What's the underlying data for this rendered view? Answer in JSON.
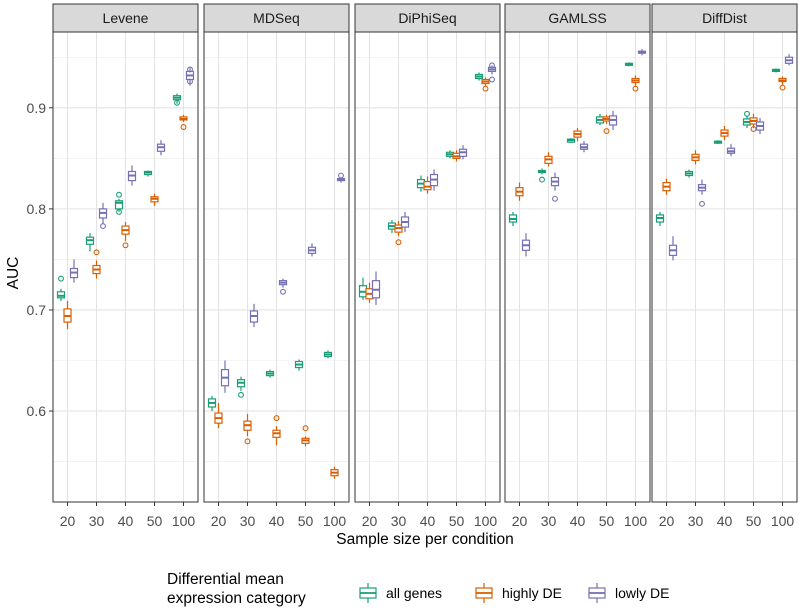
{
  "chart_data": {
    "type": "boxplot",
    "xlabel": "Sample size per condition",
    "ylabel": "AUC",
    "ylim": [
      0.51,
      0.975
    ],
    "yticks": [
      0.6,
      0.7,
      0.8,
      0.9
    ],
    "ytick_labels": [
      "0.6",
      "0.7",
      "0.8",
      "0.9"
    ],
    "categories": [
      "20",
      "30",
      "40",
      "50",
      "100"
    ],
    "legend": {
      "title_line1": "Differential mean",
      "title_line2": "expression category",
      "position": "bottom"
    },
    "series": [
      {
        "key": "all",
        "name": "all genes",
        "color": "#1b9e77"
      },
      {
        "key": "high",
        "name": "highly DE",
        "color": "#d95f02"
      },
      {
        "key": "low",
        "name": "lowly DE",
        "color": "#7570b3"
      }
    ],
    "panels": [
      {
        "name": "Levene",
        "boxes": {
          "all": [
            [
              0.709,
              0.712,
              0.714,
              0.718,
              0.721,
              [
                0.731
              ]
            ],
            [
              0.758,
              0.765,
              0.769,
              0.772,
              0.776,
              []
            ],
            [
              0.797,
              0.8,
              0.806,
              0.808,
              0.81,
              [
                0.814,
                0.797
              ]
            ],
            [
              0.832,
              0.834,
              0.836,
              0.837,
              0.838,
              []
            ],
            [
              0.904,
              0.908,
              0.91,
              0.912,
              0.914,
              [
                0.905
              ]
            ]
          ],
          "high": [
            [
              0.681,
              0.688,
              0.694,
              0.701,
              0.709,
              []
            ],
            [
              0.731,
              0.736,
              0.74,
              0.744,
              0.749,
              [
                0.757
              ]
            ],
            [
              0.768,
              0.775,
              0.779,
              0.783,
              0.787,
              [
                0.764
              ]
            ],
            [
              0.803,
              0.807,
              0.81,
              0.812,
              0.815,
              []
            ],
            [
              0.886,
              0.888,
              0.889,
              0.891,
              0.893,
              [
                0.881
              ]
            ]
          ],
          "low": [
            [
              0.727,
              0.732,
              0.737,
              0.741,
              0.75,
              []
            ],
            [
              0.785,
              0.791,
              0.796,
              0.8,
              0.806,
              [
                0.783
              ]
            ],
            [
              0.823,
              0.828,
              0.833,
              0.837,
              0.843,
              []
            ],
            [
              0.853,
              0.857,
              0.861,
              0.864,
              0.868,
              []
            ],
            [
              0.922,
              0.928,
              0.932,
              0.936,
              0.94,
              [
                0.938,
                0.926
              ]
            ]
          ]
        }
      },
      {
        "name": "MDSeq",
        "boxes": {
          "all": [
            [
              0.6,
              0.604,
              0.608,
              0.612,
              0.615,
              []
            ],
            [
              0.62,
              0.624,
              0.628,
              0.631,
              0.634,
              [
                0.616
              ]
            ],
            [
              0.633,
              0.635,
              0.637,
              0.639,
              0.641,
              []
            ],
            [
              0.64,
              0.643,
              0.646,
              0.649,
              0.651,
              []
            ],
            [
              0.652,
              0.654,
              0.656,
              0.658,
              0.66,
              []
            ]
          ],
          "high": [
            [
              0.583,
              0.588,
              0.593,
              0.598,
              0.608,
              []
            ],
            [
              0.575,
              0.581,
              0.586,
              0.59,
              0.597,
              [
                0.57
              ]
            ],
            [
              0.566,
              0.574,
              0.578,
              0.581,
              0.585,
              [
                0.593
              ]
            ],
            [
              0.565,
              0.568,
              0.571,
              0.573,
              0.575,
              [
                0.583
              ]
            ],
            [
              0.533,
              0.536,
              0.539,
              0.542,
              0.545,
              []
            ]
          ],
          "low": [
            [
              0.618,
              0.625,
              0.633,
              0.641,
              0.65,
              []
            ],
            [
              0.683,
              0.688,
              0.694,
              0.699,
              0.706,
              []
            ],
            [
              0.722,
              0.725,
              0.727,
              0.729,
              0.731,
              [
                0.718
              ]
            ],
            [
              0.753,
              0.756,
              0.759,
              0.762,
              0.766,
              []
            ],
            [
              0.826,
              0.828,
              0.829,
              0.83,
              0.831,
              [
                0.833
              ]
            ]
          ]
        }
      },
      {
        "name": "DiPhiSeq",
        "boxes": {
          "all": [
            [
              0.71,
              0.713,
              0.718,
              0.724,
              0.732,
              []
            ],
            [
              0.776,
              0.78,
              0.783,
              0.786,
              0.789,
              []
            ],
            [
              0.817,
              0.821,
              0.825,
              0.829,
              0.833,
              []
            ],
            [
              0.85,
              0.852,
              0.854,
              0.856,
              0.858,
              []
            ],
            [
              0.927,
              0.929,
              0.931,
              0.933,
              0.935,
              []
            ]
          ],
          "high": [
            [
              0.707,
              0.711,
              0.716,
              0.721,
              0.727,
              []
            ],
            [
              0.773,
              0.777,
              0.781,
              0.784,
              0.788,
              [
                0.767
              ]
            ],
            [
              0.815,
              0.819,
              0.822,
              0.827,
              0.832,
              []
            ],
            [
              0.847,
              0.85,
              0.852,
              0.855,
              0.858,
              []
            ],
            [
              0.922,
              0.924,
              0.926,
              0.928,
              0.93,
              [
                0.919
              ]
            ]
          ],
          "low": [
            [
              0.705,
              0.712,
              0.72,
              0.729,
              0.738,
              []
            ],
            [
              0.777,
              0.782,
              0.787,
              0.792,
              0.797,
              []
            ],
            [
              0.818,
              0.823,
              0.829,
              0.834,
              0.839,
              []
            ],
            [
              0.849,
              0.852,
              0.856,
              0.859,
              0.863,
              []
            ],
            [
              0.933,
              0.936,
              0.938,
              0.94,
              0.942,
              [
                0.942,
                0.928
              ]
            ]
          ]
        }
      },
      {
        "name": "GAMLSS",
        "boxes": {
          "all": [
            [
              0.783,
              0.787,
              0.79,
              0.794,
              0.797,
              []
            ],
            [
              0.834,
              0.836,
              0.837,
              0.838,
              0.84,
              [
                0.829
              ]
            ],
            [
              0.865,
              0.866,
              0.868,
              0.869,
              0.87,
              []
            ],
            [
              0.883,
              0.885,
              0.888,
              0.891,
              0.894,
              []
            ],
            [
              0.941,
              0.942,
              0.943,
              0.944,
              0.945,
              []
            ]
          ],
          "high": [
            [
              0.808,
              0.813,
              0.817,
              0.821,
              0.826,
              []
            ],
            [
              0.842,
              0.845,
              0.849,
              0.852,
              0.856,
              []
            ],
            [
              0.867,
              0.871,
              0.874,
              0.877,
              0.88,
              []
            ],
            [
              0.884,
              0.887,
              0.889,
              0.891,
              0.893,
              [
                0.877
              ]
            ],
            [
              0.922,
              0.925,
              0.927,
              0.929,
              0.932,
              [
                0.919
              ]
            ]
          ],
          "low": [
            [
              0.753,
              0.759,
              0.764,
              0.769,
              0.776,
              []
            ],
            [
              0.818,
              0.823,
              0.827,
              0.831,
              0.836,
              [
                0.81
              ]
            ],
            [
              0.856,
              0.859,
              0.861,
              0.864,
              0.867,
              []
            ],
            [
              0.878,
              0.883,
              0.888,
              0.892,
              0.897,
              []
            ],
            [
              0.952,
              0.954,
              0.955,
              0.956,
              0.958,
              []
            ]
          ]
        }
      },
      {
        "name": "DiffDist",
        "boxes": {
          "all": [
            [
              0.783,
              0.787,
              0.791,
              0.794,
              0.797,
              []
            ],
            [
              0.831,
              0.833,
              0.835,
              0.837,
              0.839,
              []
            ],
            [
              0.864,
              0.865,
              0.866,
              0.867,
              0.868,
              []
            ],
            [
              0.88,
              0.883,
              0.886,
              0.889,
              0.892,
              [
                0.894
              ]
            ],
            [
              0.935,
              0.936,
              0.937,
              0.938,
              0.939,
              []
            ]
          ],
          "high": [
            [
              0.814,
              0.818,
              0.822,
              0.826,
              0.83,
              []
            ],
            [
              0.844,
              0.848,
              0.851,
              0.854,
              0.858,
              []
            ],
            [
              0.868,
              0.872,
              0.875,
              0.878,
              0.882,
              []
            ],
            [
              0.88,
              0.884,
              0.887,
              0.89,
              0.894,
              [
                0.879
              ]
            ],
            [
              0.923,
              0.926,
              0.927,
              0.929,
              0.931,
              [
                0.92
              ]
            ]
          ],
          "low": [
            [
              0.749,
              0.754,
              0.759,
              0.764,
              0.773,
              []
            ],
            [
              0.814,
              0.818,
              0.821,
              0.824,
              0.829,
              [
                0.805
              ]
            ],
            [
              0.852,
              0.855,
              0.857,
              0.86,
              0.864,
              []
            ],
            [
              0.874,
              0.878,
              0.882,
              0.886,
              0.89,
              []
            ],
            [
              0.942,
              0.944,
              0.947,
              0.95,
              0.953,
              []
            ]
          ]
        }
      }
    ]
  }
}
